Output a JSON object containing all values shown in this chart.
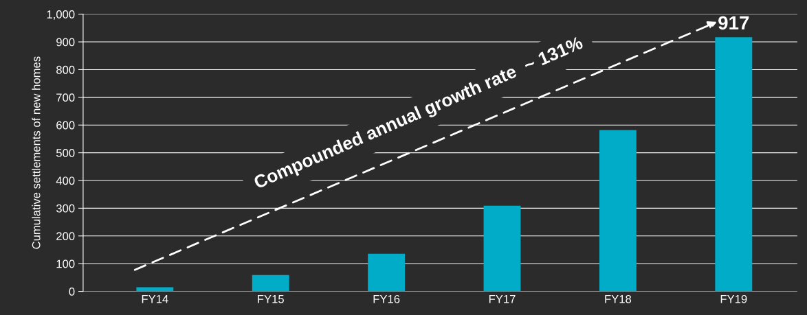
{
  "chart_data": {
    "type": "bar",
    "ylabel": "Cumulative settlements of new homes",
    "categories": [
      "FY14",
      "FY15",
      "FY16",
      "FY17",
      "FY18",
      "FY19"
    ],
    "values": [
      15,
      59,
      136,
      309,
      582,
      917
    ],
    "value_labels": [
      null,
      null,
      null,
      null,
      null,
      "917"
    ],
    "color": "#00acc8",
    "ylim": [
      0,
      1000
    ],
    "yticks": [
      0,
      100,
      200,
      300,
      400,
      500,
      600,
      700,
      800,
      900,
      {
        "value": 1000,
        "label": "1,000"
      }
    ],
    "grid": "y",
    "annotations": [
      "Compounded annual growth rate  ~ 131%"
    ]
  }
}
